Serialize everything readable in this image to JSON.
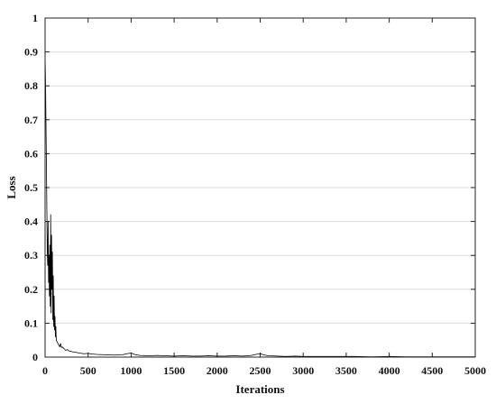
{
  "chart_data": {
    "type": "line",
    "xlabel": "Iterations",
    "ylabel": "Loss",
    "xlim": [
      0,
      5000
    ],
    "ylim": [
      0,
      1
    ],
    "x_ticks": [
      "0",
      "500",
      "1000",
      "1500",
      "2000",
      "2500",
      "3000",
      "3500",
      "4000",
      "4500",
      "5000"
    ],
    "y_ticks": [
      "0",
      "0.1",
      "0.2",
      "0.3",
      "0.4",
      "0.5",
      "0.6",
      "0.7",
      "0.8",
      "0.9",
      "1"
    ],
    "grid": "horizontal",
    "series": [
      {
        "color": "#000000",
        "x": [
          0,
          5,
          10,
          15,
          20,
          25,
          30,
          35,
          40,
          45,
          50,
          55,
          60,
          65,
          70,
          75,
          80,
          85,
          90,
          95,
          100,
          105,
          110,
          115,
          120,
          125,
          130,
          140,
          150,
          160,
          170,
          180,
          190,
          200,
          220,
          240,
          260,
          280,
          300,
          330,
          360,
          400,
          450,
          500,
          550,
          600,
          700,
          800,
          900,
          950,
          1000,
          1050,
          1100,
          1200,
          1300,
          1400,
          1500,
          1600,
          1700,
          1800,
          1900,
          2000,
          2100,
          2200,
          2300,
          2400,
          2450,
          2500,
          2550,
          2600,
          2700,
          2800,
          2900,
          3000,
          3200,
          3400,
          3600,
          3800,
          4000,
          4200,
          4400,
          4600,
          4800,
          5000
        ],
        "y": [
          0.89,
          0.82,
          0.7,
          0.58,
          0.45,
          0.32,
          0.27,
          0.4,
          0.22,
          0.3,
          0.18,
          0.33,
          0.15,
          0.42,
          0.13,
          0.36,
          0.2,
          0.31,
          0.11,
          0.24,
          0.09,
          0.18,
          0.08,
          0.12,
          0.06,
          0.09,
          0.05,
          0.045,
          0.04,
          0.035,
          0.03,
          0.04,
          0.028,
          0.03,
          0.025,
          0.02,
          0.022,
          0.018,
          0.017,
          0.015,
          0.014,
          0.012,
          0.01,
          0.011,
          0.009,
          0.008,
          0.007,
          0.006,
          0.007,
          0.01,
          0.012,
          0.007,
          0.005,
          0.004,
          0.005,
          0.004,
          0.003,
          0.004,
          0.003,
          0.003,
          0.004,
          0.003,
          0.003,
          0.004,
          0.003,
          0.005,
          0.008,
          0.01,
          0.006,
          0.004,
          0.003,
          0.002,
          0.003,
          0.002,
          0.002,
          0.002,
          0.002,
          0.001,
          0.002,
          0.001,
          0.001,
          0.001,
          0.001,
          0.001
        ]
      }
    ]
  }
}
